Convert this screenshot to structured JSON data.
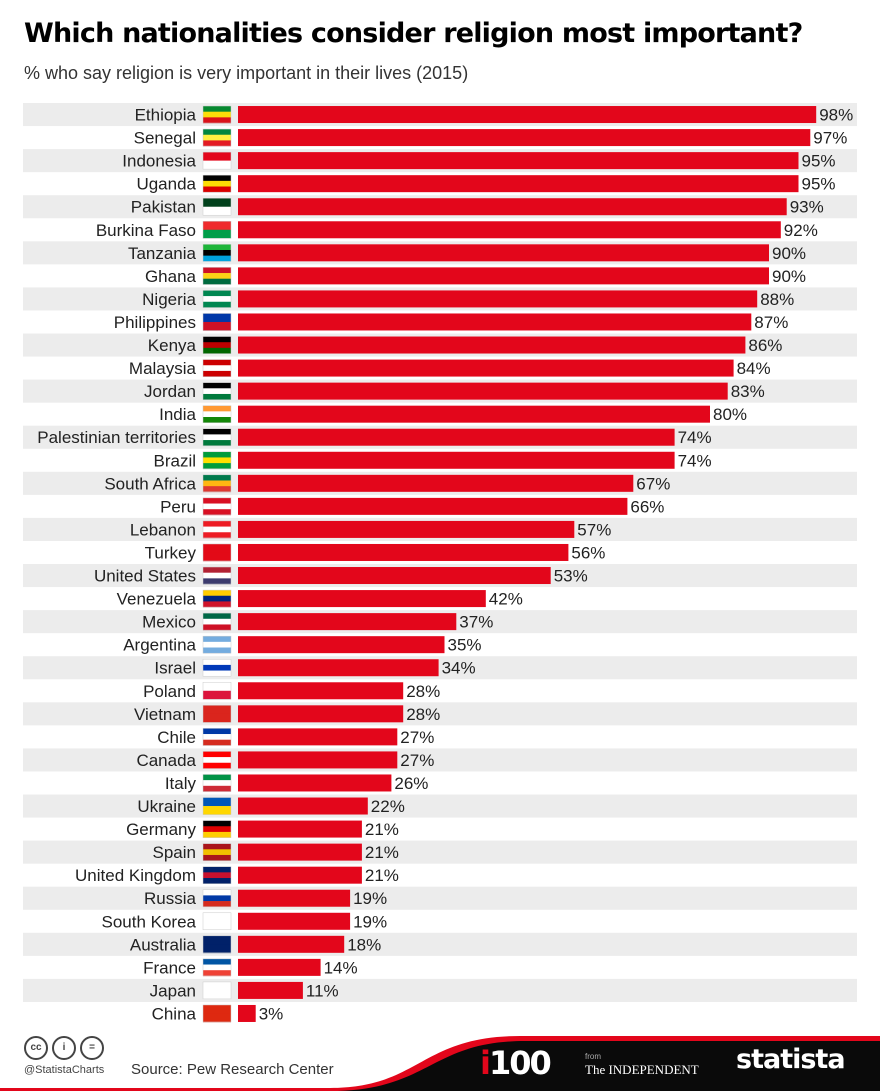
{
  "chart_data": {
    "type": "bar",
    "orientation": "horizontal",
    "title": "Which nationalities consider religion most important?",
    "subtitle": "% who say religion is very important in their lives (2015)",
    "bar_color": "#e3061b",
    "xlim": [
      0,
      100
    ],
    "value_suffix": "%",
    "categories": [
      "Ethiopia",
      "Senegal",
      "Indonesia",
      "Uganda",
      "Pakistan",
      "Burkina Faso",
      "Tanzania",
      "Ghana",
      "Nigeria",
      "Philippines",
      "Kenya",
      "Malaysia",
      "Jordan",
      "India",
      "Palestinian territories",
      "Brazil",
      "South Africa",
      "Peru",
      "Lebanon",
      "Turkey",
      "United States",
      "Venezuela",
      "Mexico",
      "Argentina",
      "Israel",
      "Poland",
      "Vietnam",
      "Chile",
      "Canada",
      "Italy",
      "Ukraine",
      "Germany",
      "Spain",
      "United Kingdom",
      "Russia",
      "South Korea",
      "Australia",
      "France",
      "Japan",
      "China"
    ],
    "values": [
      98,
      97,
      95,
      95,
      93,
      92,
      90,
      90,
      88,
      87,
      86,
      84,
      83,
      80,
      74,
      74,
      67,
      66,
      57,
      56,
      53,
      42,
      37,
      35,
      34,
      28,
      28,
      27,
      27,
      26,
      22,
      21,
      21,
      21,
      19,
      19,
      18,
      14,
      11,
      3
    ],
    "labels": [
      "98%",
      "97%",
      "95%",
      "95%",
      "93%",
      "92%",
      "90%",
      "90%",
      "88%",
      "87%",
      "86%",
      "84%",
      "83%",
      "80%",
      "74%",
      "74%",
      "67%",
      "66%",
      "57%",
      "56%",
      "53%",
      "42%",
      "37%",
      "35%",
      "34%",
      "28%",
      "28%",
      "27%",
      "27%",
      "26%",
      "22%",
      "21%",
      "21%",
      "21%",
      "19%",
      "19%",
      "18%",
      "14%",
      "11%",
      "3%"
    ],
    "flags": [
      [
        "#078930",
        "#fcdd09",
        "#da121a"
      ],
      [
        "#00853f",
        "#fdef42",
        "#e31b23"
      ],
      [
        "#e3061b",
        "#ffffff"
      ],
      [
        "#000000",
        "#fcdc04",
        "#d90000"
      ],
      [
        "#01411c",
        "#ffffff"
      ],
      [
        "#ef2b2d",
        "#009e49"
      ],
      [
        "#1eb53a",
        "#000000",
        "#00a3dd"
      ],
      [
        "#ce1126",
        "#fcd116",
        "#006b3f"
      ],
      [
        "#008751",
        "#ffffff",
        "#008751"
      ],
      [
        "#0038a8",
        "#ce1126"
      ],
      [
        "#000000",
        "#bb0000",
        "#006600"
      ],
      [
        "#cc0001",
        "#ffffff",
        "#cc0001"
      ],
      [
        "#000000",
        "#ffffff",
        "#007a3d"
      ],
      [
        "#ff9933",
        "#ffffff",
        "#138808"
      ],
      [
        "#000000",
        "#ffffff",
        "#007a3d"
      ],
      [
        "#009c3b",
        "#ffdf00",
        "#009c3b"
      ],
      [
        "#007a4d",
        "#ffb612",
        "#de3831"
      ],
      [
        "#d91023",
        "#ffffff",
        "#d91023"
      ],
      [
        "#ed1c24",
        "#ffffff",
        "#ed1c24"
      ],
      [
        "#e30a17",
        "#e30a17"
      ],
      [
        "#b22234",
        "#ffffff",
        "#3c3b6e"
      ],
      [
        "#ffcc00",
        "#00247d",
        "#cf142b"
      ],
      [
        "#006847",
        "#ffffff",
        "#ce1126"
      ],
      [
        "#74acdf",
        "#ffffff",
        "#74acdf"
      ],
      [
        "#ffffff",
        "#0038b8",
        "#ffffff"
      ],
      [
        "#ffffff",
        "#dc143c"
      ],
      [
        "#da251d",
        "#da251d"
      ],
      [
        "#0039a6",
        "#ffffff",
        "#d52b1e"
      ],
      [
        "#ff0000",
        "#ffffff",
        "#ff0000"
      ],
      [
        "#009246",
        "#ffffff",
        "#ce2b37"
      ],
      [
        "#0057b7",
        "#ffd700"
      ],
      [
        "#000000",
        "#dd0000",
        "#ffce00"
      ],
      [
        "#aa151b",
        "#f1bf00",
        "#aa151b"
      ],
      [
        "#012169",
        "#c8102e",
        "#012169"
      ],
      [
        "#ffffff",
        "#0039a6",
        "#d52b1e"
      ],
      [
        "#ffffff",
        "#ffffff"
      ],
      [
        "#012169",
        "#012169"
      ],
      [
        "#0055a4",
        "#ffffff",
        "#ef4135"
      ],
      [
        "#ffffff",
        "#ffffff"
      ],
      [
        "#de2910",
        "#de2910"
      ]
    ]
  },
  "footer": {
    "handle": "@StatistaCharts",
    "source": "Source: Pew Research Center",
    "i100": "100",
    "i100_i": "i",
    "from": "from",
    "independent": "The INDEPENDENT",
    "statista": "statista"
  }
}
